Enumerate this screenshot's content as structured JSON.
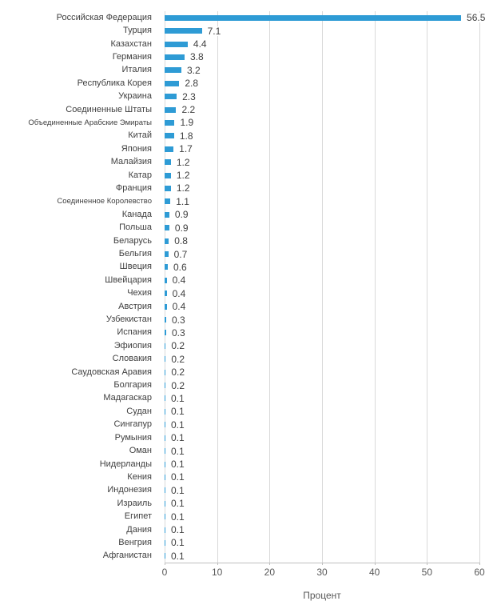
{
  "chart_data": {
    "type": "bar",
    "orientation": "horizontal",
    "title": "",
    "xlabel": "Процент",
    "xlim": [
      0,
      60
    ],
    "xticks": [
      0,
      10,
      20,
      30,
      40,
      50,
      60
    ],
    "grid": true,
    "bar_color": "#2E9BD5",
    "gridline_color": "#D9D9D9",
    "axis_color": "#BFBFBF",
    "text_color": "#404040",
    "categories": [
      "Российская Федерация",
      "Турция",
      "Казахстан",
      "Германия",
      "Италия",
      "Республика Корея",
      "Украина",
      "Соединенные Штаты",
      "Объединенные Арабские Эмираты",
      "Китай",
      "Япония",
      "Малайзия",
      "Катар",
      "Франция",
      "Соединенное Королевство",
      "Канада",
      "Польша",
      "Беларусь",
      "Бельгия",
      "Швеция",
      "Швейцария",
      "Чехия",
      "Австрия",
      "Узбекистан",
      "Испания",
      "Эфиопия",
      "Словакия",
      "Саудовская Аравия",
      "Болгария",
      "Мадагаскар",
      "Судан",
      "Сингапур",
      "Румыния",
      "Оман",
      "Нидерланды",
      "Кения",
      "Индонезия",
      "Израиль",
      "Египет",
      "Дания",
      "Венгрия",
      "Афганистан"
    ],
    "values": [
      56.5,
      7.1,
      4.4,
      3.8,
      3.2,
      2.8,
      2.3,
      2.2,
      1.9,
      1.8,
      1.7,
      1.2,
      1.2,
      1.2,
      1.1,
      0.9,
      0.9,
      0.8,
      0.7,
      0.6,
      0.4,
      0.4,
      0.4,
      0.3,
      0.3,
      0.2,
      0.2,
      0.2,
      0.2,
      0.1,
      0.1,
      0.1,
      0.1,
      0.1,
      0.1,
      0.1,
      0.1,
      0.1,
      0.1,
      0.1,
      0.1,
      0.1
    ]
  }
}
